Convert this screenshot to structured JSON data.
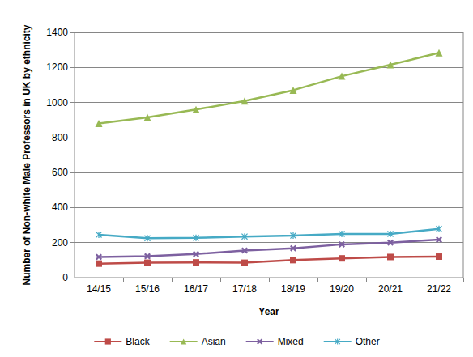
{
  "chart_data": {
    "type": "line",
    "x_label": "Year",
    "y_label": "Number of Non-white Male Professors in UK by ethnicity",
    "categories": [
      "14/15",
      "15/16",
      "16/17",
      "17/18",
      "18/19",
      "19/20",
      "20/21",
      "21/22"
    ],
    "series": [
      {
        "name": "Black",
        "color": "#be4b48",
        "marker": "square",
        "values": [
          80,
          85,
          87,
          85,
          100,
          110,
          118,
          120
        ]
      },
      {
        "name": "Asian",
        "color": "#98b954",
        "marker": "triangle",
        "values": [
          880,
          915,
          960,
          1008,
          1070,
          1150,
          1215,
          1283
        ]
      },
      {
        "name": "Mixed",
        "color": "#7d60a0",
        "marker": "x",
        "values": [
          118,
          122,
          135,
          155,
          168,
          190,
          200,
          217
        ]
      },
      {
        "name": "Other",
        "color": "#46aac5",
        "marker": "asterisk",
        "values": [
          245,
          225,
          227,
          235,
          240,
          250,
          250,
          278
        ]
      }
    ],
    "ylim": [
      0,
      1400
    ],
    "yticks": [
      0,
      200,
      400,
      600,
      800,
      1000,
      1200,
      1400
    ],
    "grid": true,
    "legend": "bottom"
  }
}
